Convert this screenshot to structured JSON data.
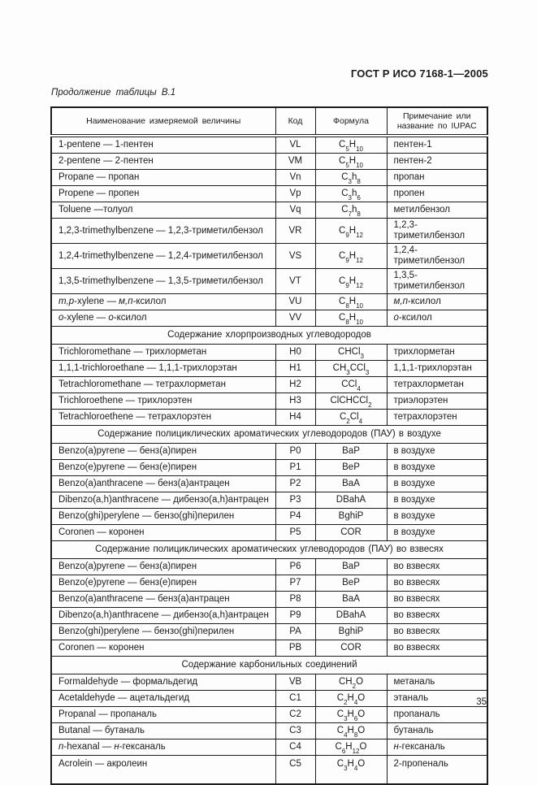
{
  "page": {
    "doc_header": "ГОСТ Р ИСО 7168-1—2005",
    "table_caption": "Продолжение таблицы В.1",
    "page_number": "35"
  },
  "table": {
    "headers": [
      "Наименование измеряемой величины",
      "Код",
      "Формула",
      "Примечание или название по IUPAC"
    ],
    "sections": [
      {
        "title": "",
        "rows": [
          {
            "name": "1-pentene — 1-пентен",
            "code": "VL",
            "formula": [
              "C",
              "5",
              "H",
              "10"
            ],
            "note": "пентен-1"
          },
          {
            "name": "2-pentene — 2-пентен",
            "code": "VM",
            "formula": [
              "C",
              "5",
              "H",
              "10"
            ],
            "note": "пентен-2"
          },
          {
            "name": "Propane — пропан",
            "code": "Vn",
            "formula": [
              "C",
              "3",
              "h",
              "8"
            ],
            "note": "пропан"
          },
          {
            "name": "Propene — пропен",
            "code": "Vp",
            "formula": [
              "C",
              "3",
              "h",
              "6"
            ],
            "note": "пропен"
          },
          {
            "name": "Toluene —толуол",
            "code": "Vq",
            "formula": [
              "C",
              "7",
              "h",
              "8"
            ],
            "note": "метилбензол"
          },
          {
            "name": "1,2,3-trimethylbenzene — 1,2,3-триметилбензол",
            "code": "VR",
            "formula": [
              "C",
              "9",
              "H",
              "12"
            ],
            "note": "1,2,3-триметилбензол"
          },
          {
            "name": "1,2,4-trimethylbenzene — 1,2,4-триметилбензол",
            "code": "VS",
            "formula": [
              "C",
              "9",
              "H",
              "12"
            ],
            "note": "1,2,4-триметилбензол"
          },
          {
            "name": "1,3,5-trimethylbenzene — 1,3,5-триметилбензол",
            "code": "VT",
            "formula": [
              "C",
              "9",
              "H",
              "12"
            ],
            "note": "1,3,5-триметилбензол"
          },
          {
            "name": "*m,p*-xylene — *м,п*-ксилол",
            "code": "VU",
            "formula": [
              "C",
              "8",
              "H",
              "10"
            ],
            "note": "*м,п*-ксилол"
          },
          {
            "name": "*o*-xylene — *о*-ксилол",
            "code": "VV",
            "formula": [
              "C",
              "8",
              "H",
              "10"
            ],
            "note": "*о*-ксилол"
          }
        ]
      },
      {
        "title": "Содержание хлорпроизводных углеводородов",
        "rows": [
          {
            "name": "Trichloromethane — трихлорметан",
            "code": "H0",
            "formula": [
              "CHCl",
              "3"
            ],
            "note": "трихлорметан"
          },
          {
            "name": "1,1,1-trichloroethane — 1,1,1-трихлорэтан",
            "code": "H1",
            "formula": [
              "CH",
              "3",
              "CCl",
              "3"
            ],
            "note": "1,1,1-трихлорэтан"
          },
          {
            "name": "Tetrachloromethane — тетрахлорметан",
            "code": "H2",
            "formula": [
              "CCl",
              "4"
            ],
            "note": "тетрахлорметан"
          },
          {
            "name": "Trichloroethene — трихлорэтен",
            "code": "H3",
            "formula": [
              "ClCHCCl",
              "2"
            ],
            "note": "триэлорэтен"
          },
          {
            "name": "Tetrachloroethene — тетрахлорэтен",
            "code": "H4",
            "formula": [
              "C",
              "2",
              "Cl",
              "4"
            ],
            "note": "тетрахлорэтен"
          }
        ]
      },
      {
        "title": "Содержание полициклических ароматических углеводородов (ПАУ) в воздухе",
        "rows": [
          {
            "name": "Benzo(a)pyrene — бенз(а)пирен",
            "code": "P0",
            "formula": [
              "BaP"
            ],
            "note": "в воздухе"
          },
          {
            "name": "Benzo(e)pyrene — бенз(е)пирен",
            "code": "P1",
            "formula": [
              "BeP"
            ],
            "note": "в воздухе"
          },
          {
            "name": "Benzo(a)anthracene — бенз(а)антрацен",
            "code": "P2",
            "formula": [
              "BaA"
            ],
            "note": "в воздухе"
          },
          {
            "name": "Dibenzo(a,h)anthracene — дибензо(a,h)антрацен",
            "code": "P3",
            "formula": [
              "DBahA"
            ],
            "note": "в воздухе"
          },
          {
            "name": "Benzo(ghi)perylene — бензо(ghi)перилен",
            "code": "P4",
            "formula": [
              "BghiP"
            ],
            "note": "в воздухе"
          },
          {
            "name": "Coronen — коронен",
            "code": "P5",
            "formula": [
              "COR"
            ],
            "note": "в воздухе"
          }
        ]
      },
      {
        "title": "Содержание полициклических ароматических углеводородов (ПАУ) во взвесях",
        "rows": [
          {
            "name": "Benzo(a)pyrene — бенз(а)пирен",
            "code": "P6",
            "formula": [
              "BaP"
            ],
            "note": "во взвесях"
          },
          {
            "name": "Benzo(e)pyrene — бенз(е)пирен",
            "code": "P7",
            "formula": [
              "BeP"
            ],
            "note": "во взвесях"
          },
          {
            "name": "Benzo(a)anthracene — бенз(а)антрацен",
            "code": "P8",
            "formula": [
              "BaA"
            ],
            "note": "во взвесях"
          },
          {
            "name": "Dibenzo(a,h)anthracene — дибензо(a,h)антрацен",
            "code": "P9",
            "formula": [
              "DBahA"
            ],
            "note": "во взвесях"
          },
          {
            "name": "Benzo(ghi)perylene — бензо(ghi)перилен",
            "code": "PA",
            "formula": [
              "BghiP"
            ],
            "note": "во взвесях"
          },
          {
            "name": "Coronen — коронен",
            "code": "PB",
            "formula": [
              "COR"
            ],
            "note": "во взвесях"
          }
        ]
      },
      {
        "title": "Содержание карбонильных соединений",
        "rows": [
          {
            "name": "Formaldehyde — формальдегид",
            "code": "VB",
            "formula": [
              "CH",
              "2",
              "O"
            ],
            "note": "метаналь"
          },
          {
            "name": "Acetaldehyde — ацетальдегид",
            "code": "C1",
            "formula": [
              "C",
              "2",
              "H",
              "4",
              "O"
            ],
            "note": "этаналь"
          },
          {
            "name": "Propanal — пропаналь",
            "code": "C2",
            "formula": [
              "C",
              "3",
              "H",
              "6",
              "O"
            ],
            "note": "пропаналь"
          },
          {
            "name": "Butanal — бутаналь",
            "code": "C3",
            "formula": [
              "C",
              "4",
              "H",
              "8",
              "O"
            ],
            "note": "бутаналь"
          },
          {
            "name": "*n*-hexanal — *н*-гексаналь",
            "code": "C4",
            "formula": [
              "C",
              "6",
              "H",
              "12",
              "O"
            ],
            "note": "*н*-гексаналь"
          },
          {
            "name": "Acrolein — акролеин",
            "code": "C5",
            "formula": [
              "C",
              "3",
              "H",
              "4",
              "O"
            ],
            "note": "2-пропеналь"
          }
        ]
      }
    ]
  }
}
